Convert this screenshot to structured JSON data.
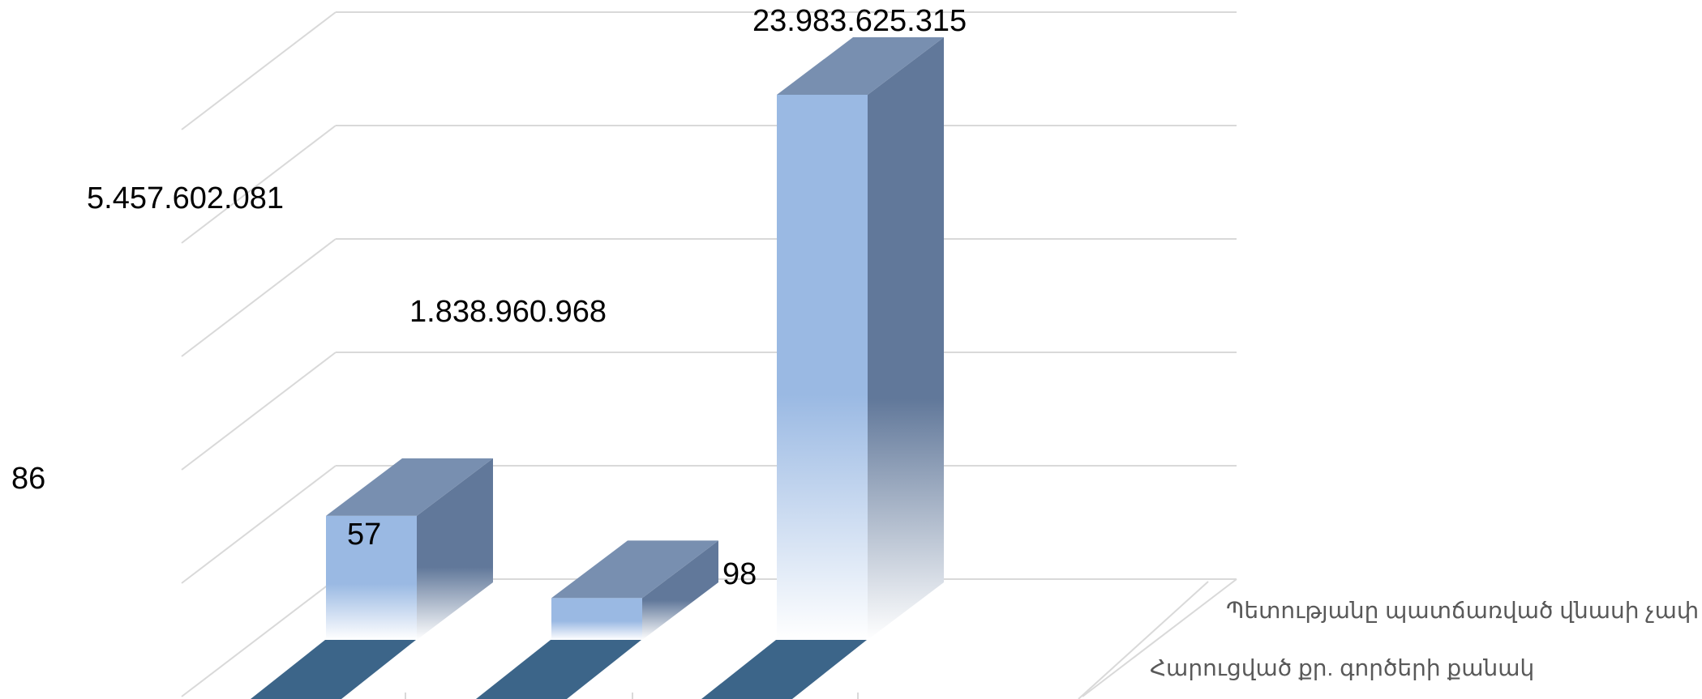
{
  "chart_data": {
    "type": "bar",
    "subtype": "3d-column",
    "title": "",
    "categories": [
      "",
      "",
      ""
    ],
    "series": [
      {
        "name": "Պետությանը պատճառված վնասի չափ",
        "values": [
          5457602081,
          1838960968,
          23983625315
        ],
        "labels": [
          "5.457.602.081",
          "1.838.960.968",
          "23.983.625.315"
        ]
      },
      {
        "name": "Հարուցված քր. գործերի քանակ",
        "values": [
          86,
          57,
          98
        ],
        "labels": [
          "86",
          "57",
          "98"
        ]
      }
    ],
    "grid": true,
    "colors": {
      "front": "#9ab9e3",
      "side": "#61789a",
      "top": "#788fb0",
      "floor_bar": "#3c6589",
      "grid": "#d9d9d9"
    }
  }
}
